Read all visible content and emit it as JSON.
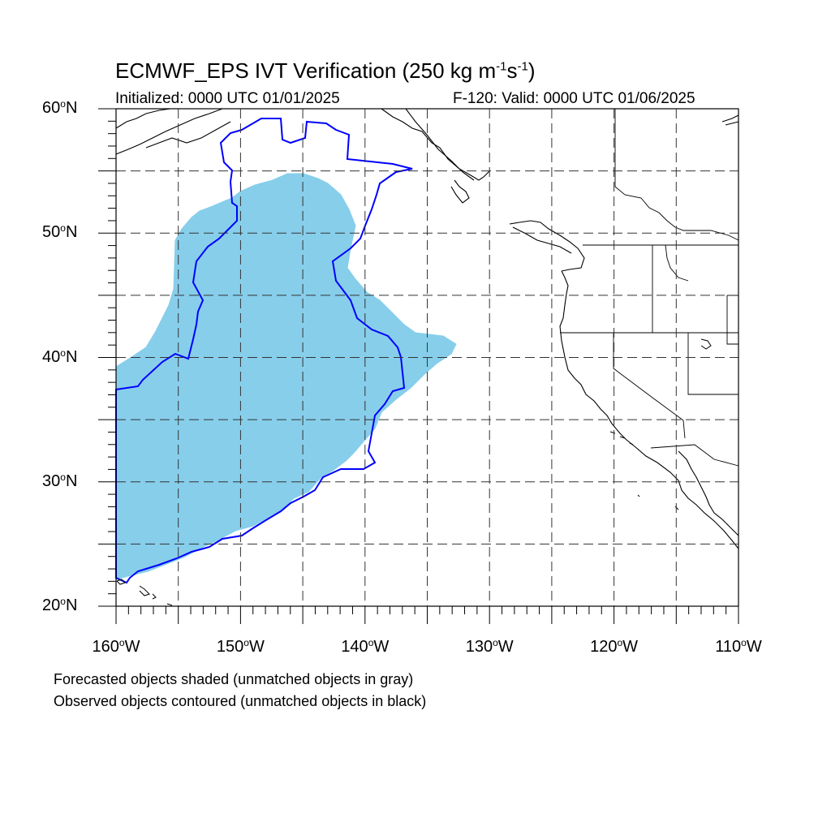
{
  "header": {
    "title_main": "ECMWF_EPS IVT Verification (250 kg m",
    "title_exp1": "-1",
    "title_mid": "s",
    "title_exp2": "-1",
    "title_end": ")",
    "initialized": "Initialized: 0000 UTC 01/01/2025",
    "valid": "F-120: Valid: 0000 UTC 01/06/2025"
  },
  "map": {
    "projection": "cylindrical equidistant",
    "lon_range": [
      -160,
      -110
    ],
    "lat_range": [
      20,
      60
    ],
    "gridlines": "dashed every 5 degrees",
    "lat_labels": [
      {
        "lat": 60,
        "text": "60",
        "hemi": "N"
      },
      {
        "lat": 50,
        "text": "50",
        "hemi": "N"
      },
      {
        "lat": 40,
        "text": "40",
        "hemi": "N"
      },
      {
        "lat": 30,
        "text": "30",
        "hemi": "N"
      },
      {
        "lat": 20,
        "text": "20",
        "hemi": "N"
      }
    ],
    "lon_labels": [
      {
        "lon": -160,
        "text": "160",
        "hemi": "W"
      },
      {
        "lon": -150,
        "text": "150",
        "hemi": "W"
      },
      {
        "lon": -140,
        "text": "140",
        "hemi": "W"
      },
      {
        "lon": -130,
        "text": "130",
        "hemi": "W"
      },
      {
        "lon": -120,
        "text": "120",
        "hemi": "W"
      },
      {
        "lon": -110,
        "text": "110",
        "hemi": "W"
      }
    ],
    "forecast_fill_color": "#87ceeb",
    "observed_contour_color": "#0000ff",
    "coast_color": "#000000"
  },
  "footer": {
    "line1": "Forecasted objects shaded (unmatched objects in gray)",
    "line2": "Observed objects contoured (unmatched objects in black)"
  }
}
